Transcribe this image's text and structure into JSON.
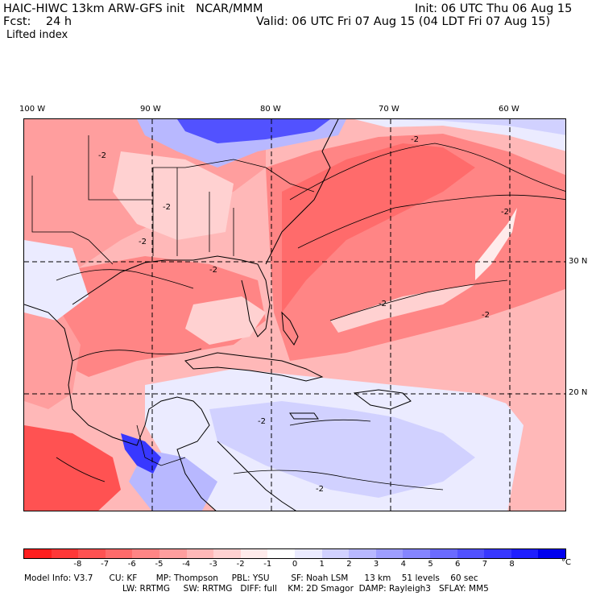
{
  "header": {
    "title_left": "HAIC-HIWC 13km ARW-GFS init   NCAR/MMM",
    "fcst_label": "Fcst:",
    "fcst_value": "24 h",
    "field_name": "Lifted index",
    "init": "Init: 06 UTC Thu 06 Aug 15",
    "valid": "Valid: 06 UTC Fri 07 Aug 15 (04 LDT Fri 07 Aug 15)"
  },
  "longitude_labels": [
    "100 W",
    "90 W",
    "80 W",
    "70 W",
    "60 W"
  ],
  "latitude_labels": [
    "30 N",
    "20 N"
  ],
  "contour_labels": [
    "-2",
    "-2",
    "-2",
    "-2",
    "-2",
    "-2",
    "-2",
    "-2",
    "-2",
    "-2"
  ],
  "colorbar": {
    "colors": [
      "#ff1f1f",
      "#ff3838",
      "#ff5252",
      "#ff6b6b",
      "#ff8585",
      "#ff9e9e",
      "#ffb8b8",
      "#ffd1d1",
      "#ffebeb",
      "#ffffff",
      "#ebebff",
      "#d1d1ff",
      "#b8b8ff",
      "#9e9eff",
      "#8585ff",
      "#6b6bff",
      "#5252ff",
      "#3838ff",
      "#1f1fff",
      "#0000ee"
    ],
    "ticks": [
      "-8",
      "-7",
      "-6",
      "-5",
      "-4",
      "-3",
      "-2",
      "-1",
      "0",
      "1",
      "2",
      "3",
      "4",
      "5",
      "6",
      "7",
      "8"
    ],
    "units": "°C"
  },
  "model_info": {
    "line1": "Model Info: V3.7      CU: KF       MP: Thompson     PBL: YSU        SF: Noah LSM      13 km    51 levels    60 sec",
    "line2": "LW: RRTMG     SW: RRTMG   DIFF: full    KM: 2D Smagor  DAMP: Rayleigh3   SFLAY: MM5"
  }
}
